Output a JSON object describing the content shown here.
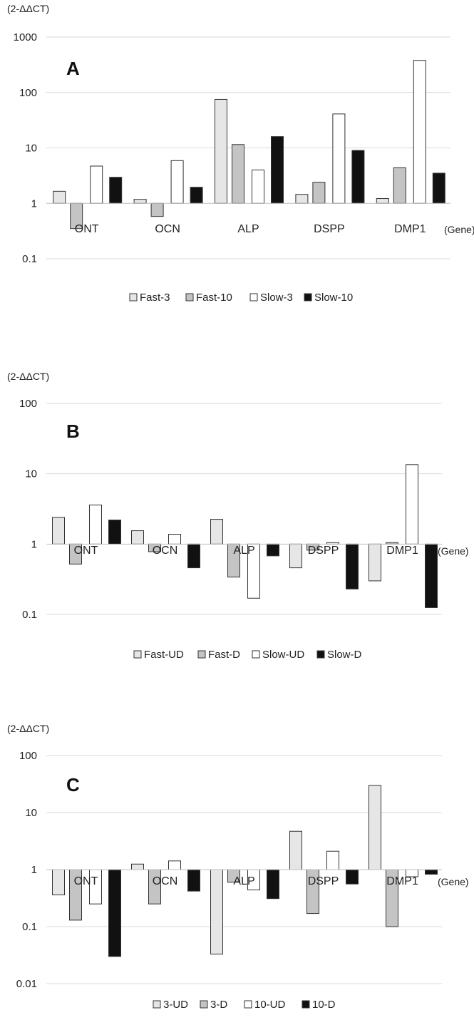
{
  "chart_data": [
    {
      "type": "bar",
      "panel_label": "A",
      "y_unit_label": "(2-ΔΔCT)",
      "x_unit_label": "(Gene)",
      "y_scale": "log",
      "ylim": [
        0.1,
        1000
      ],
      "ytick_labels": [
        "1000",
        "100",
        "10",
        "1",
        "0.1"
      ],
      "categories": [
        "ONT",
        "OCN",
        "ALP",
        "DSPP",
        "DMP1"
      ],
      "legend_position": "bottom",
      "grid": true,
      "series": [
        {
          "name": "Fast-3",
          "color": "#e6e6e6",
          "values": [
            1.65,
            1.18,
            75,
            1.45,
            1.22
          ]
        },
        {
          "name": "Fast-10",
          "color": "#c4c4c4",
          "values": [
            0.35,
            0.58,
            11.5,
            2.4,
            4.4
          ]
        },
        {
          "name": "Slow-3",
          "color": "#ffffff",
          "values": [
            4.7,
            5.9,
            4.0,
            41,
            380
          ]
        },
        {
          "name": "Slow-10",
          "color": "#111111",
          "values": [
            2.95,
            1.95,
            16,
            9.0,
            3.5
          ]
        }
      ]
    },
    {
      "type": "bar",
      "panel_label": "B",
      "y_unit_label": "(2-ΔΔCT)",
      "x_unit_label": "(Gene)",
      "y_scale": "log",
      "ylim": [
        0.1,
        100
      ],
      "ytick_labels": [
        "100",
        "10",
        "1",
        "0.1"
      ],
      "categories": [
        "ONT",
        "OCN",
        "ALP",
        "DSPP",
        "DMP1"
      ],
      "legend_position": "bottom",
      "grid": true,
      "series": [
        {
          "name": "Fast-UD",
          "color": "#e6e6e6",
          "values": [
            2.4,
            1.55,
            2.25,
            0.46,
            0.3
          ]
        },
        {
          "name": "Fast-D",
          "color": "#c4c4c4",
          "values": [
            0.52,
            0.78,
            0.34,
            0.82,
            1.05
          ]
        },
        {
          "name": "Slow-UD",
          "color": "#ffffff",
          "values": [
            3.6,
            1.38,
            0.17,
            1.05,
            13.5
          ]
        },
        {
          "name": "Slow-D",
          "color": "#111111",
          "values": [
            2.2,
            0.46,
            0.68,
            0.23,
            0.125
          ]
        }
      ]
    },
    {
      "type": "bar",
      "panel_label": "C",
      "y_unit_label": "(2-ΔΔCT)",
      "x_unit_label": "(Gene)",
      "y_scale": "log",
      "ylim": [
        0.01,
        100
      ],
      "ytick_labels": [
        "100",
        "10",
        "1",
        "0.1",
        "0.01"
      ],
      "categories": [
        "ONT",
        "OCN",
        "ALP",
        "DSPP",
        "DMP1"
      ],
      "legend_position": "bottom",
      "grid": true,
      "series": [
        {
          "name": "3-UD",
          "color": "#e6e6e6",
          "values": [
            0.36,
            1.25,
            0.033,
            4.7,
            30
          ]
        },
        {
          "name": "3-D",
          "color": "#c4c4c4",
          "values": [
            0.13,
            0.25,
            0.6,
            0.17,
            0.1
          ]
        },
        {
          "name": "10-UD",
          "color": "#ffffff",
          "values": [
            0.25,
            1.42,
            0.44,
            2.1,
            0.75
          ]
        },
        {
          "name": "10-D",
          "color": "#111111",
          "values": [
            0.03,
            0.42,
            0.31,
            0.56,
            0.83
          ]
        }
      ]
    }
  ]
}
